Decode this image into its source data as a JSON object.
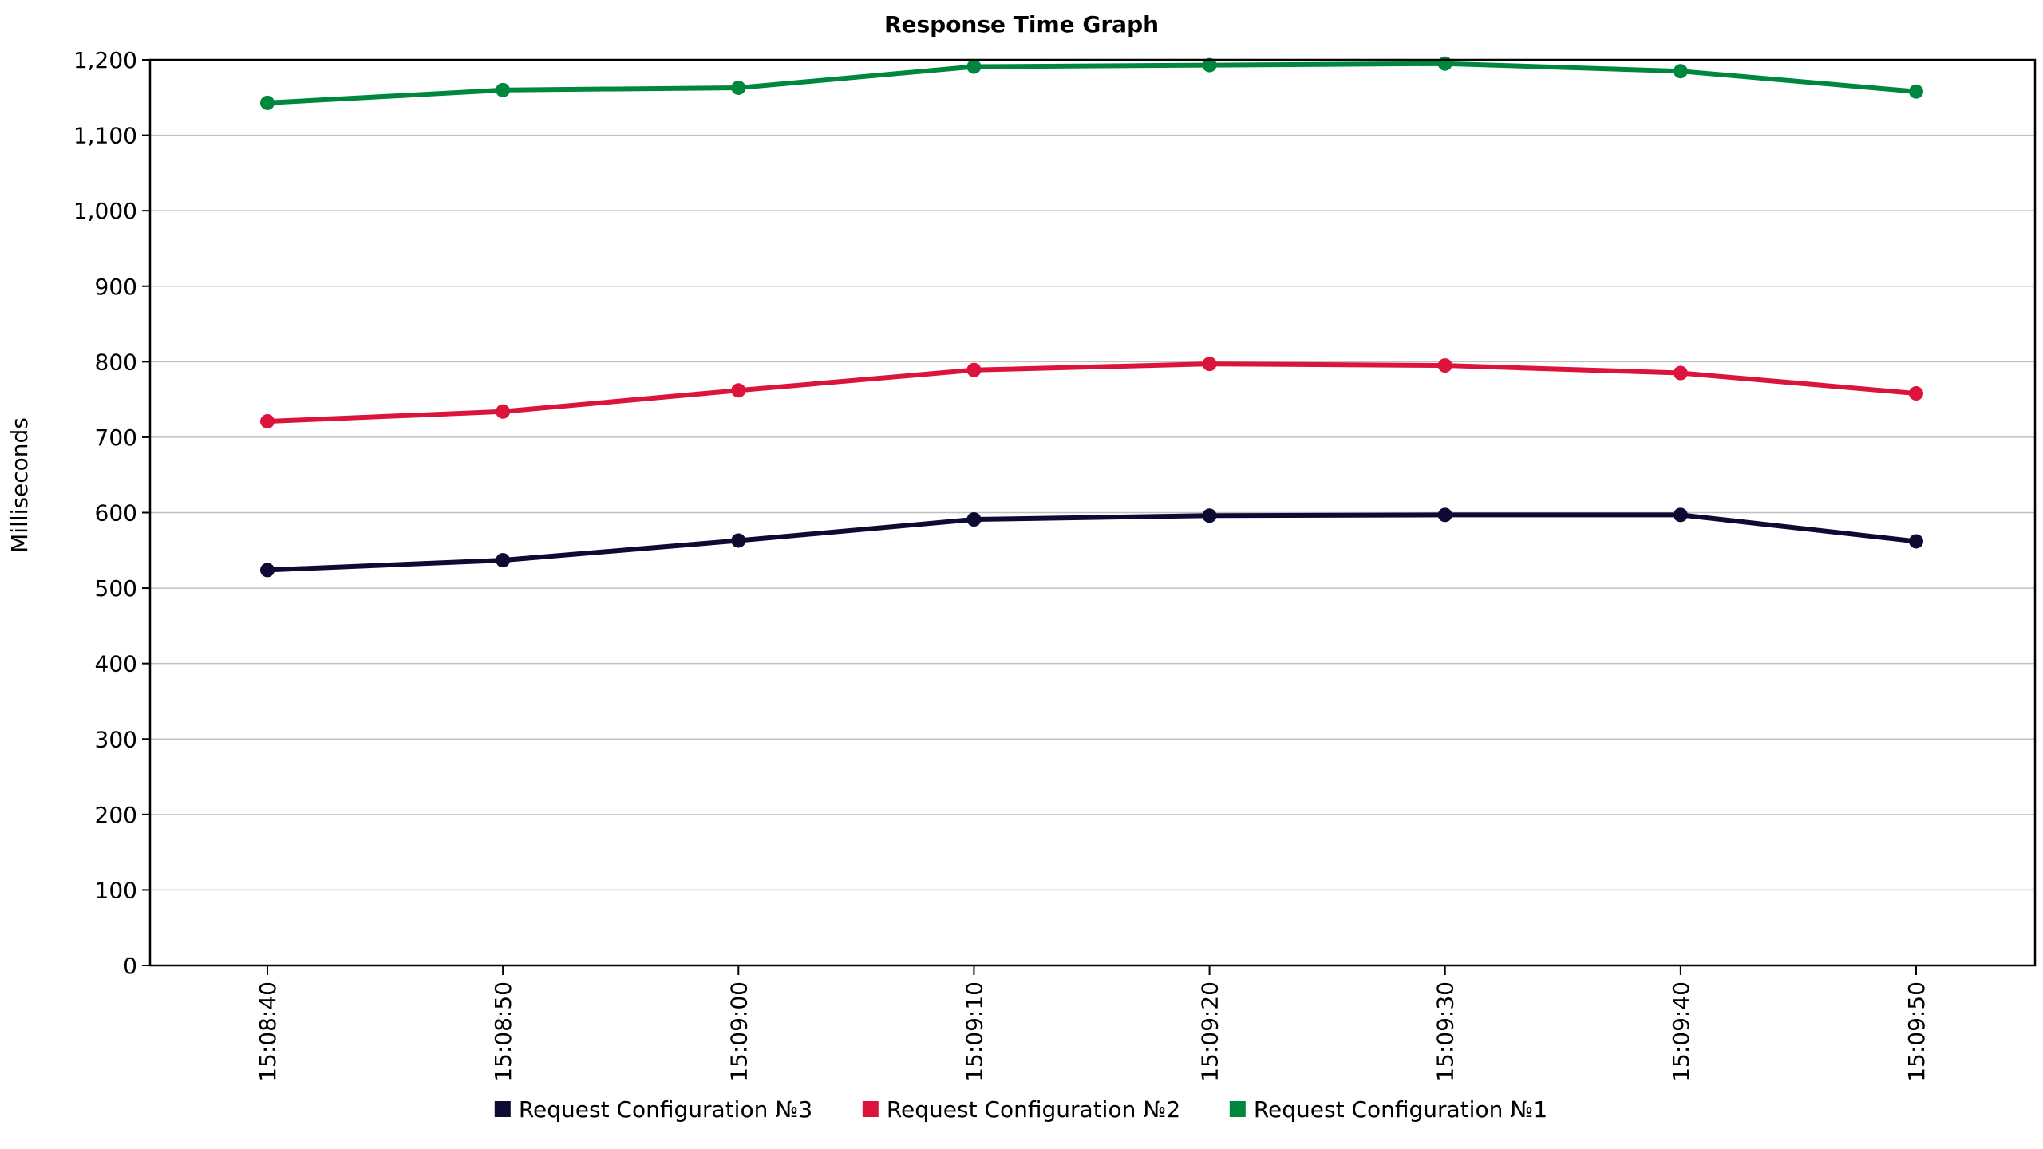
{
  "chart_data": {
    "type": "line",
    "title": "Response Time Graph",
    "xlabel": "",
    "ylabel": "Milliseconds",
    "ylim": [
      0,
      1200
    ],
    "yticks": [
      0,
      100,
      200,
      300,
      400,
      500,
      600,
      700,
      800,
      900,
      1000,
      1100,
      1200
    ],
    "ytick_labels": [
      "0",
      "100",
      "200",
      "300",
      "400",
      "500",
      "600",
      "700",
      "800",
      "900",
      "1,000",
      "1,100",
      "1,200"
    ],
    "categories": [
      "15:08:40",
      "15:08:50",
      "15:09:00",
      "15:09:10",
      "15:09:20",
      "15:09:30",
      "15:09:40",
      "15:09:50"
    ],
    "grid": true,
    "legend_position": "bottom",
    "series": [
      {
        "name": "Request Configuration №3",
        "color": "#0d0a33",
        "values": [
          524,
          537,
          563,
          591,
          596,
          597,
          597,
          562
        ]
      },
      {
        "name": "Request Configuration №2",
        "color": "#dc143c",
        "values": [
          721,
          734,
          762,
          789,
          797,
          795,
          785,
          758
        ]
      },
      {
        "name": "Request Configuration №1",
        "color": "#00873e",
        "values": [
          1143,
          1160,
          1163,
          1191,
          1193,
          1195,
          1185,
          1158
        ]
      }
    ]
  }
}
